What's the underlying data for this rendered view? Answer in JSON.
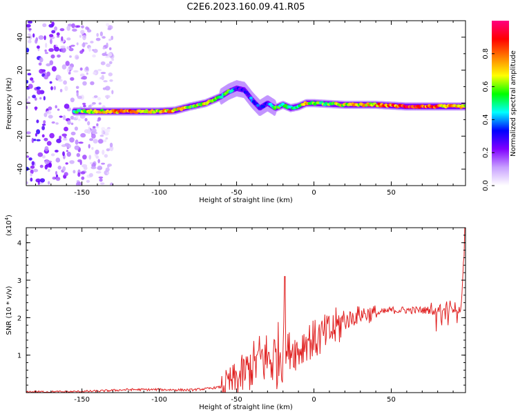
{
  "title": "C2E6.2023.160.09.41.R05",
  "chart_data": [
    {
      "type": "heatmap",
      "xlabel": "Height of straight line (km)",
      "ylabel": "Frequency (Hz)",
      "xlim": [
        -186,
        98
      ],
      "ylim": [
        -50,
        50
      ],
      "xticks": [
        -150,
        -100,
        -50,
        0,
        50
      ],
      "yticks": [
        -40,
        -20,
        0,
        20,
        40
      ],
      "colorbar": {
        "label": "Normalized spectral amplitude",
        "range": [
          0,
          1
        ],
        "ticks": [
          0.0,
          0.2,
          0.4,
          0.6,
          0.8
        ],
        "colors": [
          "#ffffff",
          "#c8a0ff",
          "#8000ff",
          "#0000ff",
          "#00ffff",
          "#00ff00",
          "#ffff00",
          "#ff8000",
          "#ff0000",
          "#ff0080"
        ]
      },
      "ridge": {
        "name": "dominant frequency track",
        "x": [
          -155,
          -140,
          -120,
          -100,
          -90,
          -80,
          -70,
          -60,
          -55,
          -50,
          -45,
          -40,
          -35,
          -30,
          -25,
          -20,
          -15,
          -10,
          -5,
          0,
          20,
          40,
          60,
          80,
          98
        ],
        "y": [
          -5,
          -5,
          -5,
          -5,
          -4.5,
          -2,
          0,
          4,
          7,
          9,
          8,
          2,
          -3,
          0,
          -3,
          -1,
          -3,
          -2,
          0,
          0,
          -1,
          -1,
          -2,
          -2,
          -2
        ],
        "amplitude": [
          0.55,
          0.7,
          0.85,
          0.75,
          0.8,
          0.6,
          0.7,
          0.5,
          0.6,
          0.3,
          0.3,
          0.4,
          0.35,
          0.3,
          0.6,
          0.55,
          0.5,
          0.5,
          0.85,
          0.6,
          0.7,
          0.8,
          0.9,
          0.85,
          0.7
        ]
      },
      "noise_region": {
        "xrange": [
          -186,
          -130
        ],
        "amplitude": 0.25
      }
    },
    {
      "type": "line",
      "xlabel": "Height of straight line (km)",
      "ylabel": "SNR (10 * v/v)",
      "multiplier": "(x10^4)",
      "xlim": [
        -186,
        98
      ],
      "ylim": [
        0,
        4.4
      ],
      "xticks": [
        -150,
        -100,
        -50,
        0,
        50
      ],
      "yticks": [
        1,
        2,
        3,
        4
      ],
      "color": "#e02020",
      "series": [
        {
          "x": [
            -186,
            -160,
            -140,
            -120,
            -100,
            -80,
            -70,
            -60,
            -50,
            -45,
            -40,
            -35,
            -30,
            -25,
            -20,
            -19,
            -18,
            -15,
            -10,
            -5,
            0,
            10,
            20,
            30,
            40,
            50,
            60,
            70,
            80,
            85,
            90,
            95,
            98
          ],
          "values": [
            0.02,
            0.02,
            0.04,
            0.08,
            0.08,
            0.07,
            0.1,
            0.15,
            0.35,
            0.5,
            0.7,
            0.9,
            0.9,
            0.9,
            1.2,
            3.1,
            1.0,
            1.2,
            1.1,
            1.4,
            1.4,
            1.6,
            1.9,
            2.1,
            2.1,
            2.2,
            2.2,
            2.2,
            2.2,
            2.3,
            2.2,
            2.2,
            4.4
          ]
        }
      ]
    }
  ]
}
